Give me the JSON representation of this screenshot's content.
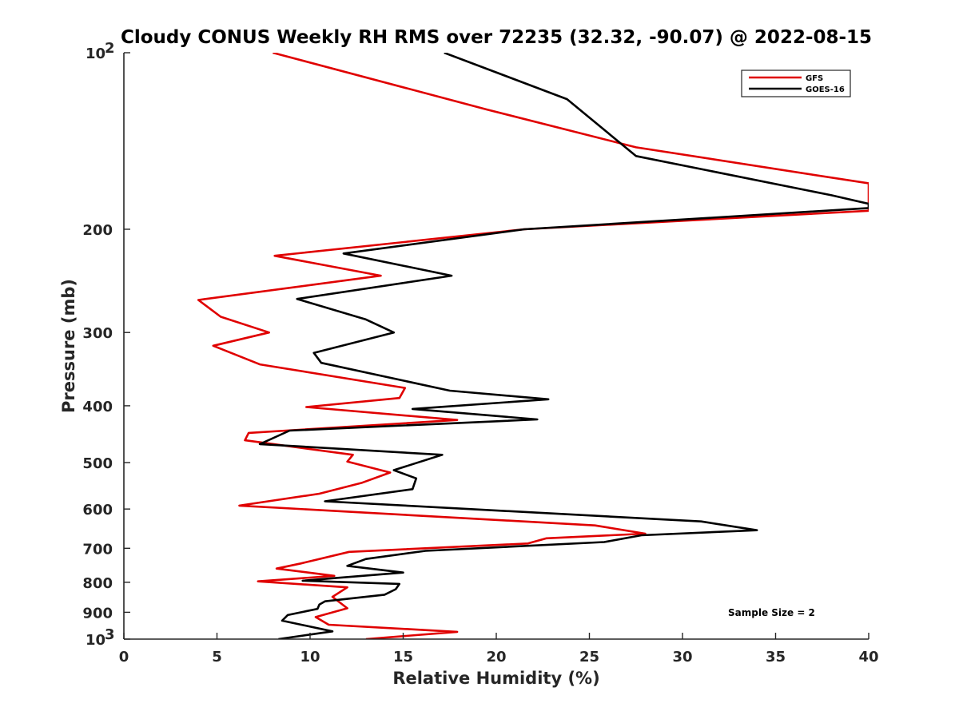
{
  "chart_data": {
    "type": "line",
    "title": "Cloudy CONUS Weekly RH RMS over 72235 (32.32, -90.07) @ 2022-08-15",
    "xlabel": "Relative Humidity (%)",
    "ylabel": "Pressure (mb)",
    "xlim": [
      0,
      40
    ],
    "ylim": [
      100,
      1000
    ],
    "yscale": "log",
    "yreversed": true,
    "grid": false,
    "legend_position": "top-right",
    "x_ticks": [
      {
        "value": 0,
        "label": "0"
      },
      {
        "value": 5,
        "label": "5"
      },
      {
        "value": 10,
        "label": "10"
      },
      {
        "value": 15,
        "label": "15"
      },
      {
        "value": 20,
        "label": "20"
      },
      {
        "value": 25,
        "label": "25"
      },
      {
        "value": 30,
        "label": "30"
      },
      {
        "value": 35,
        "label": "35"
      },
      {
        "value": 40,
        "label": "40"
      }
    ],
    "y_ticks": [
      {
        "value": 100,
        "base": "10",
        "exp": "2"
      },
      {
        "value": 200,
        "label": "200"
      },
      {
        "value": 300,
        "label": "300"
      },
      {
        "value": 400,
        "label": "400"
      },
      {
        "value": 500,
        "label": "500"
      },
      {
        "value": 600,
        "label": "600"
      },
      {
        "value": 700,
        "label": "700"
      },
      {
        "value": 800,
        "label": "800"
      },
      {
        "value": 900,
        "label": "900"
      },
      {
        "value": 1000,
        "base": "10",
        "exp": "3"
      }
    ],
    "annotation": "Sample Size = 2",
    "series": [
      {
        "name": "GFS",
        "color": "#e00000",
        "points": [
          [
            8.0,
            100
          ],
          [
            19.5,
            125
          ],
          [
            27.5,
            145
          ],
          [
            40.0,
            167
          ],
          [
            40.0,
            186
          ],
          [
            21.5,
            200
          ],
          [
            8.1,
            222
          ],
          [
            13.8,
            240
          ],
          [
            4.0,
            264
          ],
          [
            5.2,
            282
          ],
          [
            7.8,
            300
          ],
          [
            4.8,
            316
          ],
          [
            7.3,
            340
          ],
          [
            15.1,
            373
          ],
          [
            14.8,
            388
          ],
          [
            9.8,
            402
          ],
          [
            17.9,
            423
          ],
          [
            6.7,
            445
          ],
          [
            6.5,
            458
          ],
          [
            12.3,
            485
          ],
          [
            12.0,
            498
          ],
          [
            14.3,
            520
          ],
          [
            12.8,
            541
          ],
          [
            10.5,
            565
          ],
          [
            6.2,
            592
          ],
          [
            25.3,
            640
          ],
          [
            28.0,
            661
          ],
          [
            22.7,
            673
          ],
          [
            21.7,
            687
          ],
          [
            12.1,
            710
          ],
          [
            9.5,
            743
          ],
          [
            8.2,
            758
          ],
          [
            11.3,
            780
          ],
          [
            7.2,
            797
          ],
          [
            12.0,
            816
          ],
          [
            11.2,
            847
          ],
          [
            12.0,
            886
          ],
          [
            10.3,
            917
          ],
          [
            11.0,
            945
          ],
          [
            17.9,
            972
          ],
          [
            13.0,
            1000
          ]
        ]
      },
      {
        "name": "GOES-16",
        "color": "#000000",
        "points": [
          [
            17.2,
            100
          ],
          [
            23.8,
            120
          ],
          [
            27.5,
            150
          ],
          [
            38.0,
            175
          ],
          [
            40.0,
            181
          ],
          [
            40.0,
            184
          ],
          [
            21.5,
            200
          ],
          [
            11.8,
            220
          ],
          [
            17.6,
            240
          ],
          [
            9.3,
            263
          ],
          [
            13.0,
            285
          ],
          [
            14.5,
            300
          ],
          [
            10.2,
            325
          ],
          [
            10.6,
            338
          ],
          [
            17.5,
            377
          ],
          [
            22.8,
            390
          ],
          [
            15.5,
            405
          ],
          [
            22.2,
            422
          ],
          [
            8.9,
            441
          ],
          [
            7.3,
            465
          ],
          [
            17.1,
            485
          ],
          [
            14.5,
            515
          ],
          [
            15.7,
            532
          ],
          [
            15.5,
            555
          ],
          [
            10.8,
            582
          ],
          [
            31.0,
            630
          ],
          [
            34.0,
            652
          ],
          [
            27.8,
            665
          ],
          [
            25.8,
            683
          ],
          [
            16.2,
            707
          ],
          [
            13.0,
            730
          ],
          [
            12.0,
            750
          ],
          [
            15.0,
            770
          ],
          [
            9.6,
            795
          ],
          [
            14.8,
            805
          ],
          [
            14.6,
            822
          ],
          [
            14.0,
            840
          ],
          [
            10.8,
            862
          ],
          [
            10.5,
            873
          ],
          [
            10.4,
            888
          ],
          [
            8.8,
            910
          ],
          [
            8.5,
            930
          ],
          [
            11.2,
            970
          ],
          [
            8.3,
            1000
          ]
        ]
      }
    ]
  }
}
